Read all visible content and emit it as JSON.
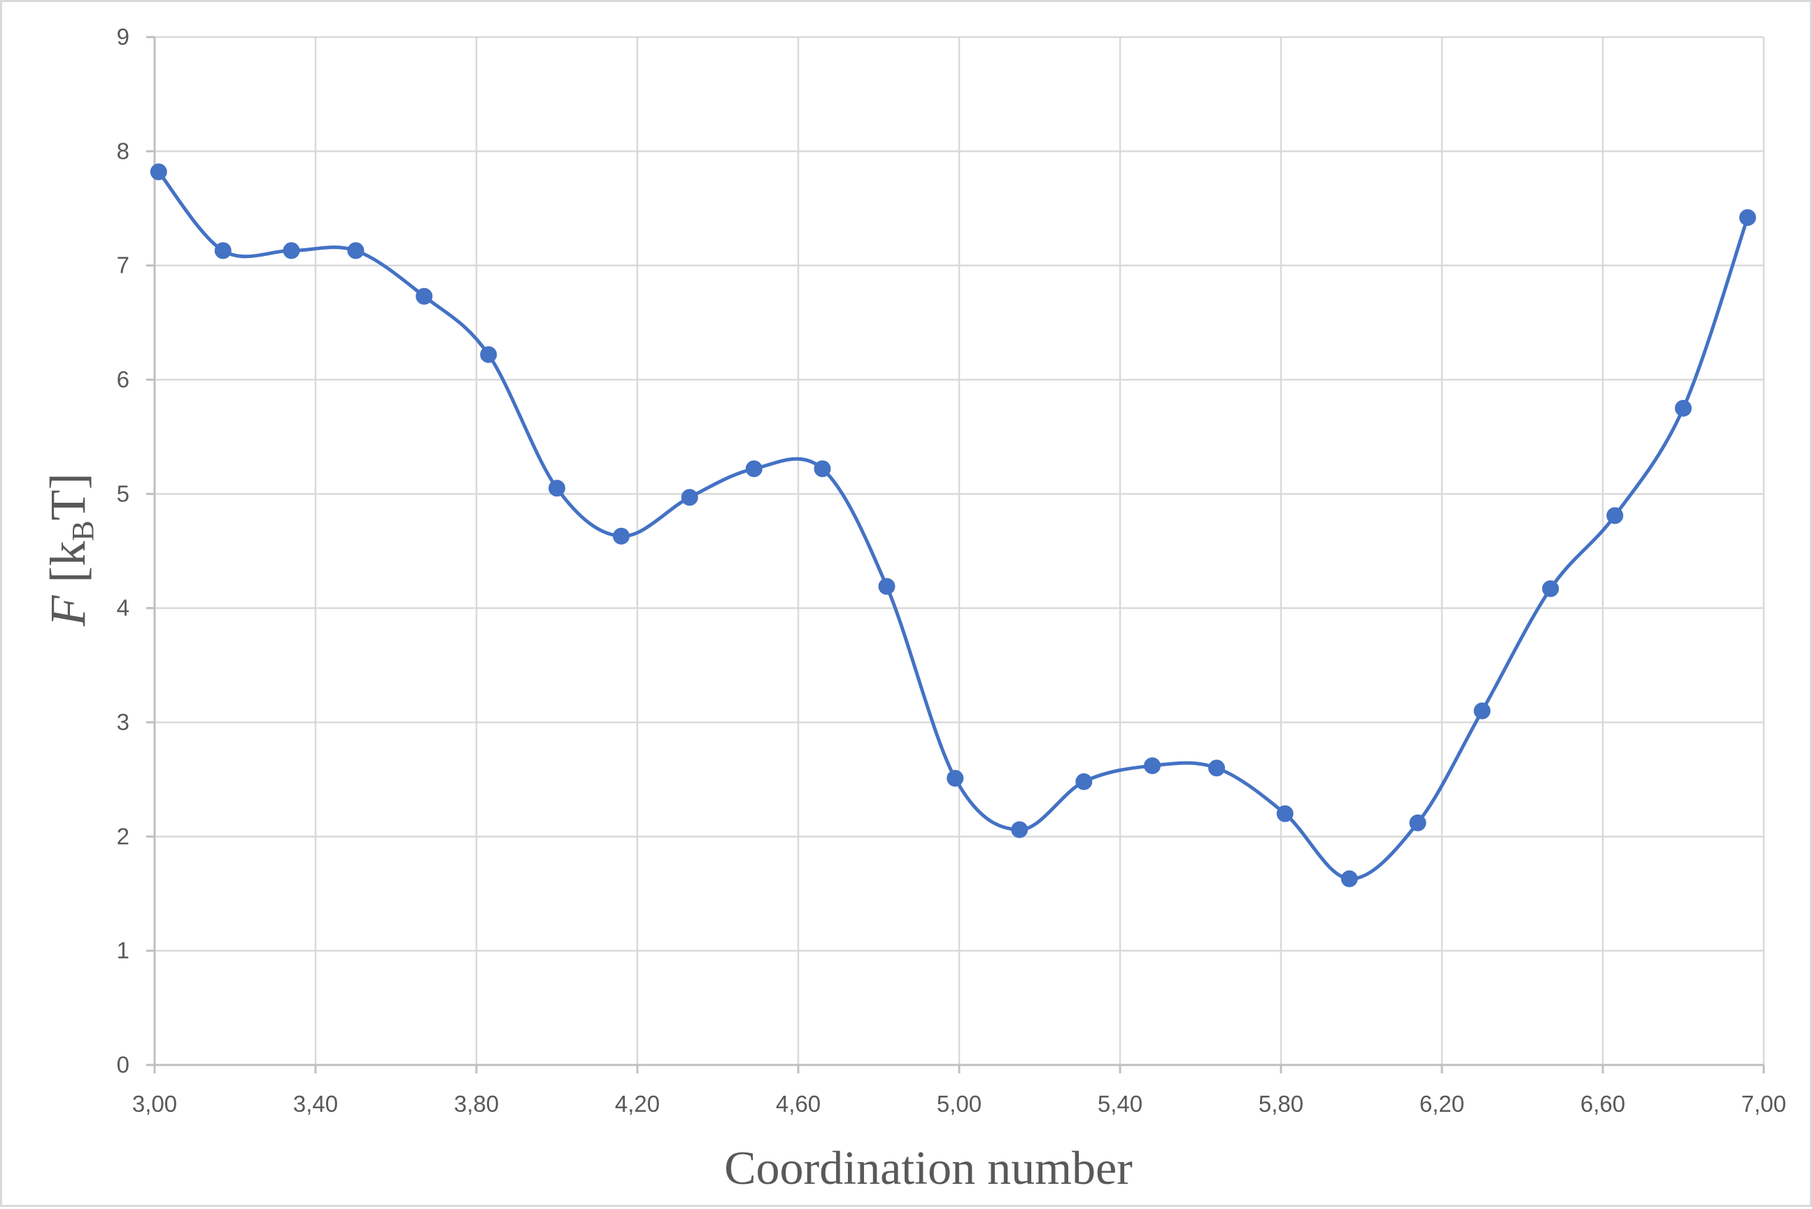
{
  "chart_data": {
    "type": "line",
    "smooth": true,
    "xlabel": "Coordination number",
    "ylabel": {
      "variable": "F",
      "open_bracket": "[",
      "unit_main": "k",
      "unit_sub": "B",
      "unit_tail": "T",
      "close_bracket": "]"
    },
    "xlim": [
      3.0,
      7.0
    ],
    "ylim": [
      0,
      9
    ],
    "x_ticks": [
      3.0,
      3.4,
      3.8,
      4.2,
      4.6,
      5.0,
      5.4,
      5.8,
      6.2,
      6.6,
      7.0
    ],
    "x_tick_labels": [
      "3,00",
      "3,40",
      "3,80",
      "4,20",
      "4,60",
      "5,00",
      "5,40",
      "5,80",
      "6,20",
      "6,60",
      "7,00"
    ],
    "y_ticks": [
      0,
      1,
      2,
      3,
      4,
      5,
      6,
      7,
      8,
      9
    ],
    "y_tick_labels": [
      "0",
      "1",
      "2",
      "3",
      "4",
      "5",
      "6",
      "7",
      "8",
      "9"
    ],
    "grid": true,
    "legend": "none",
    "series": [
      {
        "color": "#4472c4",
        "x": [
          3.01,
          3.17,
          3.34,
          3.5,
          3.67,
          3.83,
          4.0,
          4.16,
          4.33,
          4.49,
          4.66,
          4.82,
          4.99,
          5.15,
          5.31,
          5.48,
          5.64,
          5.81,
          5.97,
          6.14,
          6.3,
          6.47,
          6.63,
          6.8,
          6.96
        ],
        "y": [
          7.82,
          7.13,
          7.13,
          7.13,
          6.73,
          6.22,
          5.05,
          4.63,
          4.97,
          5.22,
          5.22,
          4.19,
          2.51,
          2.06,
          2.48,
          2.62,
          2.6,
          2.2,
          1.63,
          2.12,
          3.1,
          4.17,
          4.81,
          5.75,
          7.42
        ]
      }
    ]
  },
  "colors": {
    "grid": "#d9d9d9",
    "axis_line": "#bfbfbf",
    "text": "#595959",
    "series": "#4472c4"
  }
}
